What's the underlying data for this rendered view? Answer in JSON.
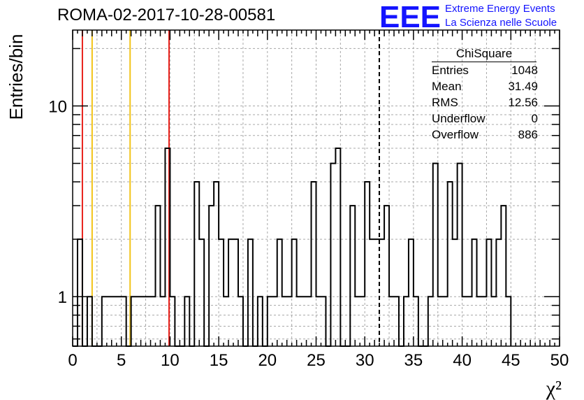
{
  "header": {
    "title": "ROMA-02-2017-10-28-00581",
    "logo_mark": "EEE",
    "logo_line1": "Extreme Energy Events",
    "logo_line2": "La Scienza nelle Scuole"
  },
  "stats_box": {
    "title": "ChiSquare",
    "rows": [
      {
        "label": "Entries",
        "value": "1048"
      },
      {
        "label": "Mean",
        "value": "31.49"
      },
      {
        "label": "RMS",
        "value": "12.56"
      },
      {
        "label": "Underflow",
        "value": "0"
      },
      {
        "label": "Overflow",
        "value": "886"
      }
    ]
  },
  "chart_data": {
    "type": "histogram",
    "xlabel": "χ²",
    "ylabel": "Entries/bin",
    "xlim": [
      0,
      50
    ],
    "ylim": [
      0.55,
      25
    ],
    "yscale": "log",
    "grid": true,
    "bin_width": 0.5,
    "x_ticks": [
      "0",
      "5",
      "10",
      "15",
      "20",
      "25",
      "30",
      "35",
      "40",
      "45",
      "50"
    ],
    "y_ticks": [
      "1",
      "10"
    ],
    "values": [
      0,
      2,
      0,
      1,
      0,
      0,
      1,
      1,
      1,
      1,
      1,
      0,
      1,
      1,
      1,
      1,
      1,
      3,
      1,
      6,
      1,
      0,
      0,
      1,
      0,
      4,
      2,
      0,
      3,
      4,
      2,
      1,
      2,
      2,
      1,
      0,
      2,
      0,
      1,
      0,
      1,
      1,
      2,
      1,
      1,
      2,
      1,
      1,
      1,
      4,
      1,
      1,
      0,
      5,
      6,
      0,
      0,
      3,
      1,
      1,
      4,
      2,
      2,
      2,
      3,
      1,
      1,
      0,
      1,
      2,
      1,
      0,
      0,
      1,
      5,
      1,
      1,
      4,
      2,
      5,
      1,
      1,
      2,
      1,
      1,
      2,
      1,
      2,
      3,
      1
    ],
    "vertical_lines": [
      {
        "x": 1.0,
        "color": "#e8201a",
        "style": "solid"
      },
      {
        "x": 2.0,
        "color": "#f2c418",
        "style": "solid"
      },
      {
        "x": 5.9,
        "color": "#f2c418",
        "style": "solid"
      },
      {
        "x": 9.9,
        "color": "#e8201a",
        "style": "solid"
      },
      {
        "x": 31.49,
        "color": "#000000",
        "style": "dashed"
      }
    ]
  }
}
